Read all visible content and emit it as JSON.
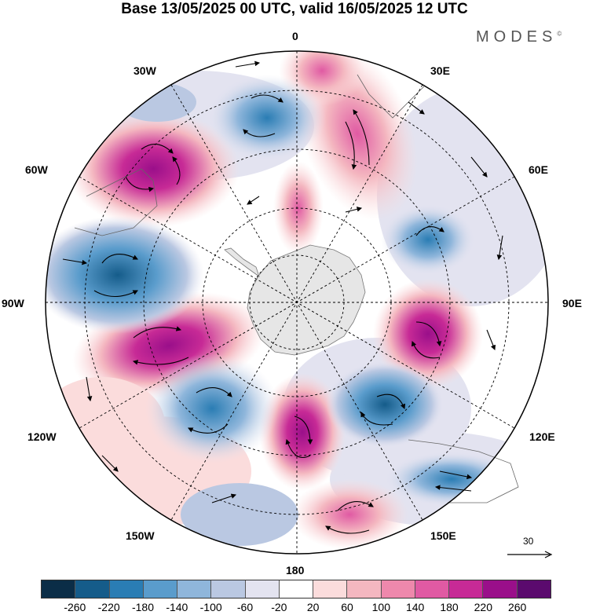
{
  "header": {
    "title": "Base 13/05/2025 00 UTC, valid 16/05/2025 12 UTC",
    "brand": "MODES",
    "brand_mark": "©"
  },
  "map": {
    "projection": "south-polar-stereographic",
    "longitude_labels": {
      "top": "0",
      "top_right": "30E",
      "right_upper": "60E",
      "right": "90E",
      "right_lower": "120E",
      "bottom_right": "150E",
      "bottom": "180",
      "bottom_left": "150W",
      "left_lower": "120W",
      "left": "90W",
      "left_upper": "60W",
      "top_left": "30W"
    },
    "reference_vector_label": "30",
    "icons": [
      "wind-vector-arrow",
      "reference-vector-arrow"
    ]
  },
  "colorbar": {
    "colors": [
      "#0b2d47",
      "#155c8a",
      "#2a7db4",
      "#5a9ccc",
      "#8fb6db",
      "#bac8e2",
      "#e3e3f0",
      "#ffffff",
      "#fbdcdc",
      "#f4b7c0",
      "#ee88ac",
      "#e05aa3",
      "#c72a96",
      "#9a0f8a",
      "#5b0a6e"
    ],
    "tick_labels": [
      "-260",
      "-220",
      "-180",
      "-140",
      "-100",
      "-60",
      "-20",
      "20",
      "60",
      "100",
      "140",
      "180",
      "220",
      "260"
    ]
  }
}
